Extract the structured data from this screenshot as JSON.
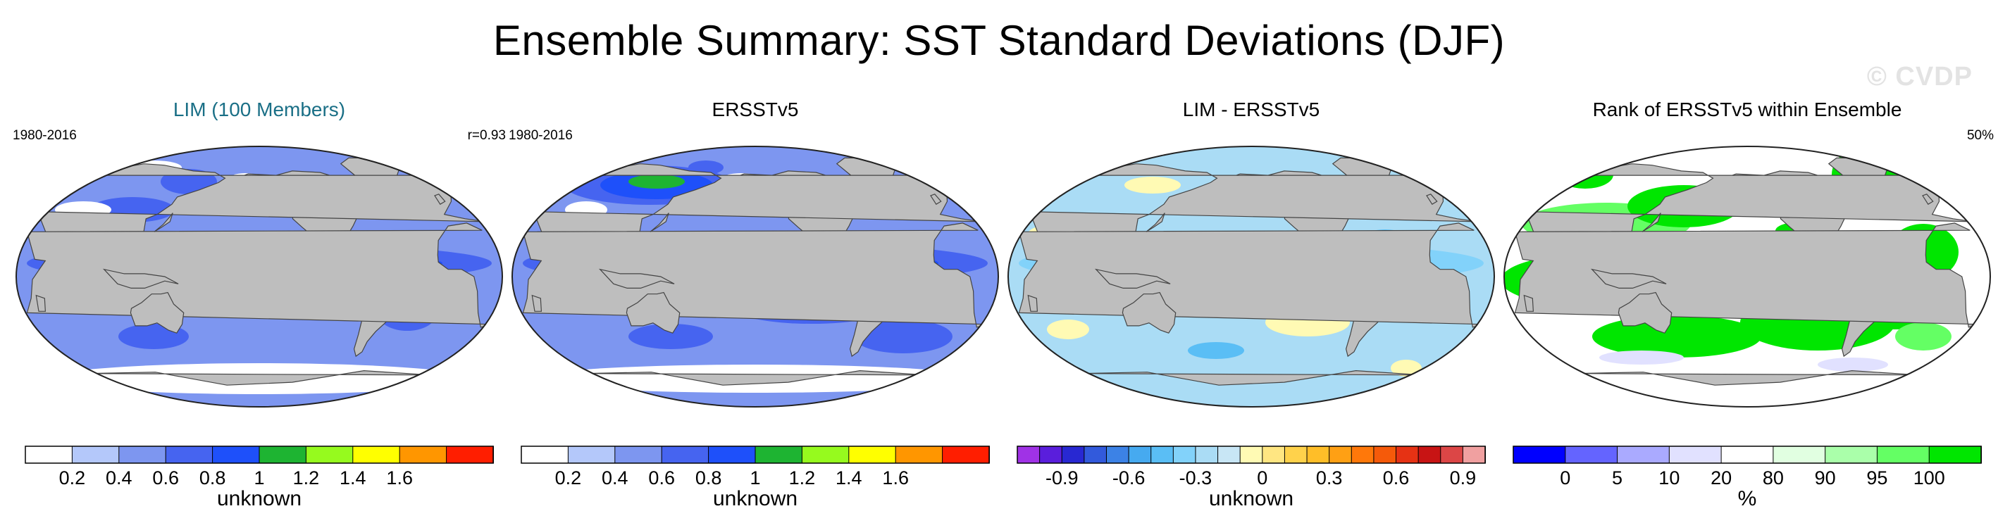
{
  "title": "Ensemble Summary: SST Standard Deviations (DJF)",
  "watermark": "© CVDP",
  "colors": {
    "ocean_none": "#ffffff",
    "land": "#bebebe",
    "teal_title": "#1a6f86"
  },
  "chart_data": [
    {
      "type": "heatmap",
      "id": "lim",
      "title": "LIM (100 Members)",
      "period": "1980-2016",
      "stat": "r=0.93",
      "colorbar": {
        "levels": [
          0.2,
          0.4,
          0.6,
          0.8,
          1,
          1.2,
          1.4,
          1.6
        ],
        "tick_labels": [
          "0.2",
          "0.4",
          "0.6",
          "0.8",
          "1",
          "1.2",
          "1.4",
          "1.6"
        ],
        "colors": [
          "#ffffff",
          "#b4c8fa",
          "#7d96f0",
          "#4664f0",
          "#1e50fa",
          "#1eb432",
          "#96fa1e",
          "#ffff00",
          "#ff9600",
          "#ff1e00"
        ],
        "label": "unknown"
      }
    },
    {
      "type": "heatmap",
      "id": "obs",
      "title": "ERSSTv5",
      "period": "1980-2016",
      "stat": "",
      "colorbar": {
        "levels": [
          0.2,
          0.4,
          0.6,
          0.8,
          1,
          1.2,
          1.4,
          1.6
        ],
        "tick_labels": [
          "0.2",
          "0.4",
          "0.6",
          "0.8",
          "1",
          "1.2",
          "1.4",
          "1.6"
        ],
        "colors": [
          "#ffffff",
          "#b4c8fa",
          "#7d96f0",
          "#4664f0",
          "#1e50fa",
          "#1eb432",
          "#96fa1e",
          "#ffff00",
          "#ff9600",
          "#ff1e00"
        ],
        "label": "unknown"
      }
    },
    {
      "type": "heatmap",
      "id": "diff",
      "title": "LIM - ERSSTv5",
      "period": "",
      "stat": "",
      "colorbar": {
        "levels": [
          -1.0,
          -0.9,
          -0.8,
          -0.7,
          -0.6,
          -0.5,
          -0.4,
          -0.3,
          -0.2,
          -0.1,
          0,
          0.1,
          0.2,
          0.3,
          0.4,
          0.5,
          0.6,
          0.7,
          0.8,
          0.9,
          1.0
        ],
        "tick_labels": [
          "-0.9",
          "-0.6",
          "-0.3",
          "0",
          "0.3",
          "0.6",
          "0.9"
        ],
        "tick_values": [
          -0.9,
          -0.6,
          -0.3,
          0,
          0.3,
          0.6,
          0.9
        ],
        "colors": [
          "#a032e6",
          "#5a1edc",
          "#2828d2",
          "#325adc",
          "#3c82e6",
          "#46aaf0",
          "#5abef5",
          "#82d2fa",
          "#aadcf5",
          "#c8e6f5",
          "#fffab4",
          "#ffe682",
          "#ffd24b",
          "#ffbe28",
          "#ffa014",
          "#ff780a",
          "#f55a0a",
          "#e63214",
          "#c81414",
          "#dc4646",
          "#f0a0a0"
        ],
        "label": "unknown"
      }
    },
    {
      "type": "heatmap",
      "id": "rank",
      "title": "Rank of ERSSTv5 within Ensemble",
      "period": "",
      "stat": "50%",
      "colorbar": {
        "levels": [
          0,
          5,
          10,
          20,
          80,
          90,
          95,
          100
        ],
        "tick_labels": [
          "0",
          "5",
          "10",
          "20",
          "80",
          "90",
          "95",
          "100"
        ],
        "colors": [
          "#0000ff",
          "#6464ff",
          "#aaaaff",
          "#e1e1ff",
          "#ffffff",
          "#e1ffe1",
          "#aaffaa",
          "#64ff64",
          "#00e600"
        ],
        "label": "%"
      }
    }
  ]
}
